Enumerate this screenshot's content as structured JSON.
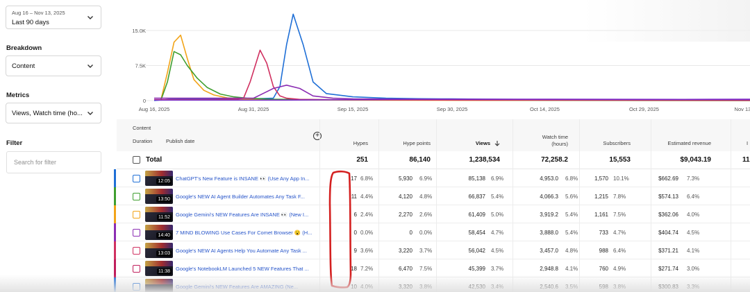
{
  "filters": {
    "date_range": {
      "small": "Aug 16 – Nov 13, 2025",
      "value": "Last 90 days"
    },
    "breakdown": {
      "label": "Breakdown",
      "value": "Content"
    },
    "metrics": {
      "label": "Metrics",
      "value": "Views, Watch time (ho..."
    },
    "filter": {
      "label": "Filter",
      "placeholder": "Search for filter"
    }
  },
  "chart_data": {
    "type": "line",
    "x_ticks": [
      "Aug 16, 2025",
      "Aug 31, 2025",
      "Sep 15, 2025",
      "Sep 30, 2025",
      "Oct 14, 2025",
      "Oct 29, 2025",
      "Nov 13,"
    ],
    "y_ticks": [
      "0",
      "7.5K",
      "15.0K"
    ],
    "ylim": [
      0,
      15000
    ],
    "grid": true,
    "series": [
      {
        "color": "#1f6fd6",
        "points": [
          [
            0,
            0
          ],
          [
            5,
            300
          ],
          [
            15,
            400
          ],
          [
            30,
            400
          ],
          [
            36,
            500
          ],
          [
            38,
            3000
          ],
          [
            40,
            12000
          ],
          [
            42,
            18500
          ],
          [
            45,
            12000
          ],
          [
            48,
            4000
          ],
          [
            52,
            1500
          ],
          [
            60,
            800
          ],
          [
            70,
            500
          ],
          [
            80,
            400
          ],
          [
            90,
            350
          ],
          [
            100,
            300
          ],
          [
            120,
            200
          ],
          [
            140,
            150
          ],
          [
            160,
            100
          ],
          [
            180,
            100
          ]
        ]
      },
      {
        "color": "#f2a418",
        "points": [
          [
            2,
            0
          ],
          [
            4,
            6000
          ],
          [
            6,
            12500
          ],
          [
            8,
            14000
          ],
          [
            10,
            9000
          ],
          [
            12,
            4500
          ],
          [
            15,
            2200
          ],
          [
            18,
            1200
          ],
          [
            22,
            600
          ],
          [
            26,
            350
          ],
          [
            30,
            250
          ],
          [
            40,
            150
          ],
          [
            60,
            100
          ],
          [
            100,
            50
          ],
          [
            180,
            0
          ]
        ]
      },
      {
        "color": "#3f9e2f",
        "points": [
          [
            2,
            0
          ],
          [
            4,
            4000
          ],
          [
            6,
            10500
          ],
          [
            8,
            9800
          ],
          [
            10,
            7500
          ],
          [
            13,
            4800
          ],
          [
            16,
            2800
          ],
          [
            20,
            1400
          ],
          [
            24,
            800
          ],
          [
            28,
            500
          ],
          [
            35,
            300
          ],
          [
            50,
            200
          ],
          [
            100,
            100
          ],
          [
            180,
            0
          ]
        ]
      },
      {
        "color": "#d03060",
        "points": [
          [
            0,
            200
          ],
          [
            18,
            200
          ],
          [
            25,
            300
          ],
          [
            27,
            500
          ],
          [
            29,
            4000
          ],
          [
            32,
            10800
          ],
          [
            34,
            8000
          ],
          [
            36,
            3000
          ],
          [
            38,
            1000
          ],
          [
            40,
            500
          ],
          [
            44,
            250
          ],
          [
            60,
            150
          ],
          [
            100,
            100
          ],
          [
            180,
            50
          ]
        ]
      },
      {
        "color": "#8b2db3",
        "points": [
          [
            0,
            500
          ],
          [
            20,
            500
          ],
          [
            30,
            500
          ],
          [
            36,
            2600
          ],
          [
            40,
            3300
          ],
          [
            44,
            2600
          ],
          [
            48,
            1000
          ],
          [
            54,
            500
          ],
          [
            60,
            350
          ],
          [
            80,
            300
          ],
          [
            120,
            250
          ],
          [
            180,
            200
          ]
        ]
      },
      {
        "color": "#7b2fc9",
        "points": [
          [
            0,
            100
          ],
          [
            40,
            100
          ],
          [
            60,
            200
          ],
          [
            80,
            300
          ],
          [
            120,
            300
          ],
          [
            160,
            250
          ],
          [
            180,
            300
          ]
        ]
      }
    ]
  },
  "table": {
    "headers": {
      "content": "Content",
      "duration": "Duration",
      "publish_date": "Publish date",
      "hypes": "Hypes",
      "hype_points": "Hype points",
      "views": "Views",
      "watch_time_1": "Watch time",
      "watch_time_2": "(hours)",
      "subscribers": "Subscribers",
      "revenue": "Estimated revenue",
      "extra": "I"
    },
    "total": {
      "label": "Total",
      "hypes": "251",
      "hype_points": "86,140",
      "views": "1,238,534",
      "watch_time": "72,258.2",
      "subscribers": "15,553",
      "revenue": "$9,043.19",
      "extra": "11,"
    },
    "rows": [
      {
        "color": "#1f6fd6",
        "duration": "12:05",
        "title": "ChatGPT's New Feature is INSANE 👀 (Use Any App In...",
        "hypes": "17",
        "hypes_pct": "6.8%",
        "hype_points": "5,930",
        "hype_points_pct": "6.9%",
        "views": "85,138",
        "views_pct": "6.9%",
        "watch_time": "4,953.0",
        "watch_time_pct": "6.8%",
        "subscribers": "1,570",
        "subscribers_pct": "10.1%",
        "revenue": "$662.69",
        "revenue_pct": "7.3%"
      },
      {
        "color": "#3f9e2f",
        "duration": "13:50",
        "title": "Google's NEW AI Agent Builder Automates Any Task F...",
        "hypes": "11",
        "hypes_pct": "4.4%",
        "hype_points": "4,120",
        "hype_points_pct": "4.8%",
        "views": "66,837",
        "views_pct": "5.4%",
        "watch_time": "4,066.3",
        "watch_time_pct": "5.6%",
        "subscribers": "1,215",
        "subscribers_pct": "7.8%",
        "revenue": "$574.13",
        "revenue_pct": "6.4%"
      },
      {
        "color": "#f2a418",
        "duration": "11:52",
        "title": "Google Gemini's NEW Features Are INSANE 👀 (New I...",
        "hypes": "6",
        "hypes_pct": "2.4%",
        "hype_points": "2,270",
        "hype_points_pct": "2.6%",
        "views": "61,409",
        "views_pct": "5.0%",
        "watch_time": "3,919.2",
        "watch_time_pct": "5.4%",
        "subscribers": "1,161",
        "subscribers_pct": "7.5%",
        "revenue": "$362.06",
        "revenue_pct": "4.0%"
      },
      {
        "color": "#8b2db3",
        "duration": "14:40",
        "title": "7 MIND BLOWING Use Cases For Comet Browser 😮 (H...",
        "hypes": "0",
        "hypes_pct": "0.0%",
        "hype_points": "0",
        "hype_points_pct": "0.0%",
        "views": "58,454",
        "views_pct": "4.7%",
        "watch_time": "3,888.0",
        "watch_time_pct": "5.4%",
        "subscribers": "733",
        "subscribers_pct": "4.7%",
        "revenue": "$404.74",
        "revenue_pct": "4.5%"
      },
      {
        "color": "#d03060",
        "duration": "13:03",
        "title": "Google's NEW AI Agents Help You Automate Any Task ...",
        "hypes": "9",
        "hypes_pct": "3.6%",
        "hype_points": "3,220",
        "hype_points_pct": "3.7%",
        "views": "56,042",
        "views_pct": "4.5%",
        "watch_time": "3,457.0",
        "watch_time_pct": "4.8%",
        "subscribers": "988",
        "subscribers_pct": "6.4%",
        "revenue": "$371.21",
        "revenue_pct": "4.1%"
      },
      {
        "color": "#c01e5c",
        "duration": "11:38",
        "title": "Google's NotebookLM Launched 5 NEW Features That ...",
        "hypes": "18",
        "hypes_pct": "7.2%",
        "hype_points": "6,470",
        "hype_points_pct": "7.5%",
        "views": "45,399",
        "views_pct": "3.7%",
        "watch_time": "2,948.8",
        "watch_time_pct": "4.1%",
        "subscribers": "760",
        "subscribers_pct": "4.9%",
        "revenue": "$271.74",
        "revenue_pct": "3.0%"
      },
      {
        "color": "#1f6fd6",
        "duration": "",
        "title": "Google Gemini's NEW Features Are AMAZING (Ne...",
        "hypes": "10",
        "hypes_pct": "4.0%",
        "hype_points": "3,320",
        "hype_points_pct": "3.8%",
        "views": "42,530",
        "views_pct": "3.4%",
        "watch_time": "2,540.6",
        "watch_time_pct": "3.5%",
        "subscribers": "598",
        "subscribers_pct": "3.8%",
        "revenue": "$300.83",
        "revenue_pct": "3.3%"
      }
    ]
  }
}
